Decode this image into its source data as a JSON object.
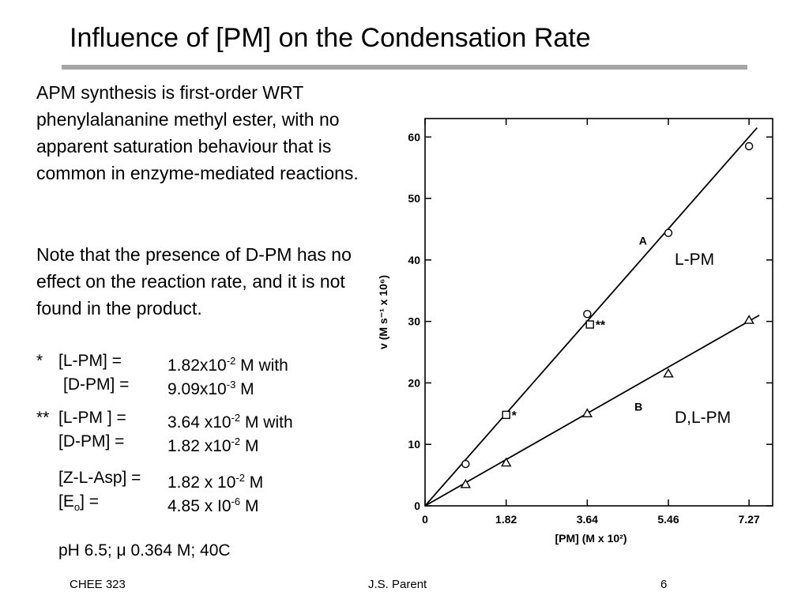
{
  "slide": {
    "title": "Influence of [PM] on the Condensation Rate",
    "paragraph1": "APM synthesis is first-order WRT phenylalananine methyl ester, with no apparent saturation behaviour that is common in enzyme-mediated reactions.",
    "paragraph2": "Note that the presence of D-PM has no effect on the reaction rate, and it is not found in the product.",
    "conditions": {
      "c1_marker": "*",
      "c1_lpm_label": "[L-PM] =",
      "c1_lpm_mant": "1.82x10",
      "c1_lpm_exp": "-2",
      "c1_lpm_unit": " M with",
      "c1_dpm_label": "[D-PM] =",
      "c1_dpm_mant": "9.09x10",
      "c1_dpm_exp": "-3",
      "c1_dpm_unit": " M",
      "c2_marker": "**",
      "c2_lpm_label": "[L-PM ] =",
      "c2_lpm_mant": "3.64 x10",
      "c2_lpm_exp": "-2",
      "c2_lpm_unit": " M with",
      "c2_dpm_label": "[D-PM] =",
      "c2_dpm_mant": "1.82 x10",
      "c2_dpm_exp": "-2",
      "c2_dpm_unit": " M",
      "zasp_label": "[Z-L-Asp] =",
      "zasp_mant": "1.82 x 10",
      "zasp_exp": "-2",
      "zasp_unit": " M",
      "eo_label_pre": "[E",
      "eo_label_sub": "o",
      "eo_label_post": "] =",
      "eo_mant": "4.85 x I0",
      "eo_exp": "-6",
      "eo_unit": " M",
      "ph_pre": "pH 6.5; ",
      "ph_mu": "μ",
      "ph_post": " 0.364 M; 40C"
    },
    "footer": {
      "left": "CHEE 323",
      "center": "J.S. Parent",
      "right": "6"
    }
  },
  "chart_data": {
    "type": "scatter",
    "xlabel": "[PM] (M x 10²)",
    "ylabel": "v (M s⁻¹ x 10⁶)",
    "xlim": [
      0,
      7.8
    ],
    "ylim": [
      0,
      63
    ],
    "x_ticks": [
      0,
      1.82,
      3.64,
      5.46,
      7.27
    ],
    "x_tick_labels": [
      "0",
      "1.82",
      "3.64",
      "5.46",
      "7.27"
    ],
    "y_ticks": [
      0,
      10,
      20,
      30,
      40,
      50,
      60
    ],
    "y_tick_labels": [
      "0",
      "10",
      "20",
      "30",
      "40",
      "50",
      "60"
    ],
    "series": [
      {
        "name": "A",
        "marker": "circle",
        "x": [
          0.91,
          3.64,
          5.46,
          7.27
        ],
        "y": [
          6.8,
          31.2,
          44.4,
          58.5
        ],
        "fit": [
          [
            0,
            0
          ],
          [
            7.45,
            61.5
          ]
        ]
      },
      {
        "name": "B",
        "marker": "triangle",
        "x": [
          0.91,
          1.82,
          3.64,
          5.46,
          7.27
        ],
        "y": [
          3.5,
          7.0,
          15.0,
          21.5,
          30.2
        ],
        "fit": [
          [
            0,
            0
          ],
          [
            7.5,
            31.0
          ]
        ]
      }
    ],
    "extra_points": [
      {
        "marker": "square",
        "x": 1.82,
        "y": 14.8,
        "label": "*"
      },
      {
        "marker": "square",
        "x": 3.7,
        "y": 29.5,
        "label": "**"
      }
    ],
    "annotations": [
      "L-PM",
      "D,L-PM"
    ]
  }
}
